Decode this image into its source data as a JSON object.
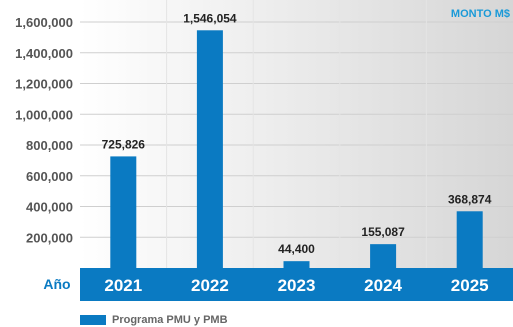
{
  "chart_data": {
    "type": "bar",
    "categories": [
      "2021",
      "2022",
      "2023",
      "2024",
      "2025"
    ],
    "values": [
      725826,
      1546054,
      44400,
      155087,
      368874
    ],
    "value_labels": [
      "725,826",
      "1,546,054",
      "44,400",
      "155,087",
      "368,874"
    ],
    "yticks": [
      200000,
      400000,
      600000,
      800000,
      1000000,
      1200000,
      1400000,
      1600000
    ],
    "ytick_labels": [
      "200,000",
      "400,000",
      "600,000",
      "800,000",
      "1,000,000",
      "1,200,000",
      "1,400,000",
      "1,600,000"
    ],
    "ylim": [
      0,
      1600000
    ],
    "xlabel": "Año",
    "unit_label": "MONTO M$",
    "legend": [
      "Programa PMU y PMB"
    ],
    "legend_position": "bottom-left",
    "colors": {
      "bar": "#0a7ac2",
      "axis_band": "#0a7ac2",
      "unit_text": "#1a9ad8",
      "xaxis_title": "#0a7ac2"
    }
  }
}
